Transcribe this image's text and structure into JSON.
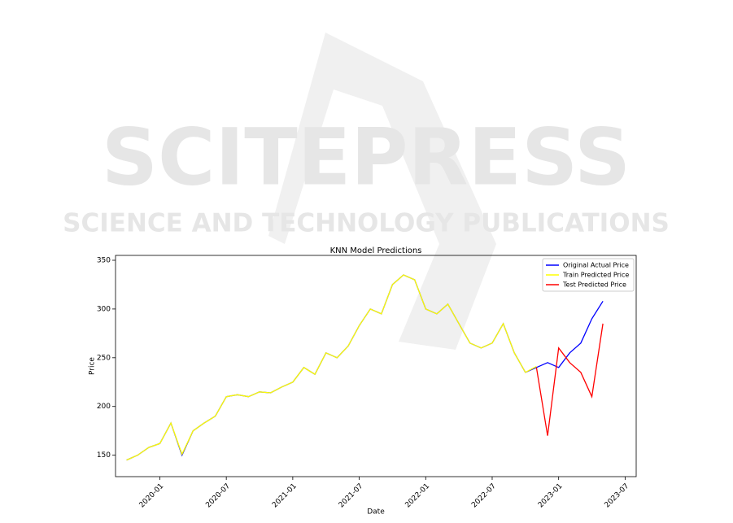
{
  "watermark": {
    "title": "SCITEPRESS",
    "subtitle": "SCIENCE AND TECHNOLOGY PUBLICATIONS"
  },
  "chart_data": {
    "type": "line",
    "title": "KNN Model Predictions",
    "x_label": "Date",
    "y_label": "Price",
    "x": [
      "2019-10",
      "2019-11",
      "2019-12",
      "2020-01",
      "2020-02",
      "2020-03",
      "2020-04",
      "2020-05",
      "2020-06",
      "2020-07",
      "2020-08",
      "2020-09",
      "2020-10",
      "2020-11",
      "2020-12",
      "2021-01",
      "2021-02",
      "2021-03",
      "2021-04",
      "2021-05",
      "2021-06",
      "2021-07",
      "2021-08",
      "2021-09",
      "2021-10",
      "2021-11",
      "2021-12",
      "2022-01",
      "2022-02",
      "2022-03",
      "2022-04",
      "2022-05",
      "2022-06",
      "2022-07",
      "2022-08",
      "2022-09",
      "2022-10",
      "2022-11",
      "2022-12",
      "2023-01",
      "2023-02",
      "2023-03",
      "2023-04",
      "2023-05"
    ],
    "series": [
      {
        "name": "Original Actual Price",
        "color": "#0000ff",
        "values": [
          145,
          150,
          158,
          162,
          183,
          150,
          175,
          183,
          190,
          210,
          212,
          210,
          215,
          214,
          220,
          225,
          240,
          233,
          255,
          250,
          262,
          283,
          300,
          295,
          325,
          335,
          330,
          300,
          295,
          305,
          285,
          265,
          260,
          265,
          285,
          255,
          235,
          240,
          245,
          240,
          255,
          265,
          290,
          308
        ]
      },
      {
        "name": "Train Predicted Price",
        "color": "#ffff00",
        "values": [
          145,
          150,
          158,
          162,
          183,
          151,
          175,
          183,
          190,
          210,
          212,
          210,
          215,
          214,
          220,
          225,
          240,
          233,
          255,
          250,
          262,
          283,
          300,
          295,
          325,
          335,
          330,
          300,
          295,
          305,
          285,
          265,
          260,
          265,
          285,
          255,
          235,
          241,
          null,
          null,
          null,
          null,
          null,
          null
        ]
      },
      {
        "name": "Test Predicted Price",
        "color": "#ff0000",
        "values": [
          null,
          null,
          null,
          null,
          null,
          null,
          null,
          null,
          null,
          null,
          null,
          null,
          null,
          null,
          null,
          null,
          null,
          null,
          null,
          null,
          null,
          null,
          null,
          null,
          null,
          null,
          null,
          null,
          null,
          null,
          null,
          null,
          null,
          null,
          null,
          null,
          null,
          240,
          170,
          260,
          245,
          235,
          210,
          285
        ]
      }
    ],
    "xlim": [
      "2019-09",
      "2023-08"
    ],
    "xticks": [
      "2020-01",
      "2020-07",
      "2021-01",
      "2021-07",
      "2022-01",
      "2022-07",
      "2023-01",
      "2023-07"
    ],
    "ylim": [
      128,
      355
    ],
    "yticks": [
      150,
      200,
      250,
      300,
      350
    ],
    "grid": false,
    "legend": "upper-right"
  }
}
